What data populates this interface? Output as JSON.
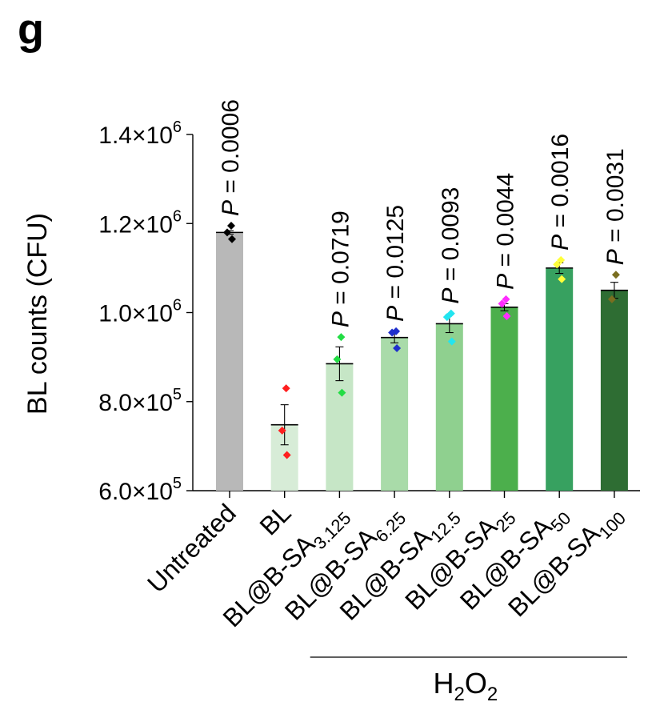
{
  "panel_label": "g",
  "chart_data": {
    "type": "bar",
    "title": "",
    "ylabel": "BL counts (CFU)",
    "ylim": [
      600000,
      1400000
    ],
    "yticks": [
      {
        "value": 600000,
        "mantissa": "6.0",
        "exp": "5"
      },
      {
        "value": 800000,
        "mantissa": "8.0",
        "exp": "5"
      },
      {
        "value": 1000000,
        "mantissa": "1.0",
        "exp": "6"
      },
      {
        "value": 1200000,
        "mantissa": "1.2",
        "exp": "6"
      },
      {
        "value": 1400000,
        "mantissa": "1.4",
        "exp": "6"
      }
    ],
    "times_sign": "×",
    "base": "10",
    "group_label": {
      "main": "H",
      "sub1": "2",
      "mid": "O",
      "sub2": "2"
    },
    "categories": [
      {
        "label": "Untreated",
        "base": "Untreated",
        "sub": "",
        "mean": 1180000,
        "sem": 4000,
        "points": [
          1195000,
          1180000,
          1165000
        ],
        "bar_color": "#b8b8b8",
        "point_color": "#000000",
        "p_prefix": "P",
        "p_value": "= 0.0006"
      },
      {
        "label": "BL",
        "base": "BL",
        "sub": "",
        "mean": 748000,
        "sem": 45000,
        "points": [
          830000,
          735000,
          680000
        ],
        "bar_color": "#d7ecd7",
        "point_color": "#ff1f1f",
        "p_prefix": "",
        "p_value": ""
      },
      {
        "label": "BL@B-SA3.125",
        "base": "BL@B-SA",
        "sub": "3.125",
        "mean": 885000,
        "sem": 38000,
        "points": [
          945000,
          895000,
          820000
        ],
        "bar_color": "#c6e6c6",
        "point_color": "#22dd44",
        "p_prefix": "P",
        "p_value": "= 0.0719"
      },
      {
        "label": "BL@B-SA6.25",
        "base": "BL@B-SA",
        "sub": "6.25",
        "mean": 944000,
        "sem": 12000,
        "points": [
          958000,
          955000,
          920000
        ],
        "bar_color": "#a9dba9",
        "point_color": "#1f2fcc",
        "p_prefix": "P",
        "p_value": "= 0.0125"
      },
      {
        "label": "BL@B-SA12.5",
        "base": "BL@B-SA",
        "sub": "12.5",
        "mean": 975000,
        "sem": 20000,
        "points": [
          998000,
          990000,
          935000
        ],
        "bar_color": "#8fd08f",
        "point_color": "#22e5f0",
        "p_prefix": "P",
        "p_value": "= 0.0093"
      },
      {
        "label": "BL@B-SA25",
        "base": "BL@B-SA",
        "sub": "25",
        "mean": 1012000,
        "sem": 8000,
        "points": [
          1030000,
          1020000,
          992000
        ],
        "bar_color": "#4caf4c",
        "point_color": "#ff2cff",
        "p_prefix": "P",
        "p_value": "= 0.0044"
      },
      {
        "label": "BL@B-SA50",
        "base": "BL@B-SA",
        "sub": "50",
        "mean": 1100000,
        "sem": 12000,
        "points": [
          1118000,
          1108000,
          1075000
        ],
        "bar_color": "#37a160",
        "point_color": "#ffff3a",
        "p_prefix": "P",
        "p_value": "= 0.0016"
      },
      {
        "label": "BL@B-SA100",
        "base": "BL@B-SA",
        "sub": "100",
        "mean": 1050000,
        "sem": 18000,
        "points": [
          1085000,
          1030000
        ],
        "bar_color": "#2e6d33",
        "point_color": "#7a6e20",
        "p_prefix": "P",
        "p_value": "= 0.0031"
      }
    ],
    "h2o2_group_start_index": 1,
    "grid": false,
    "legend": "none"
  }
}
